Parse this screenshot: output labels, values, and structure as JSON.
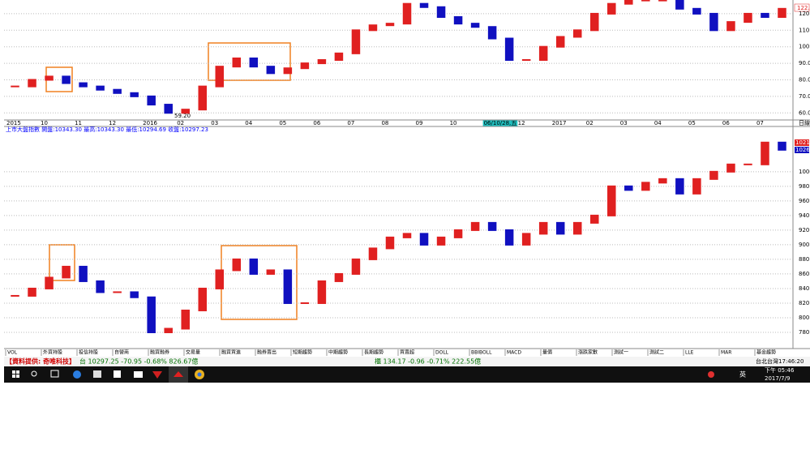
{
  "chart_data": [
    {
      "type": "candle-line",
      "up_color": "#e02020",
      "down_color": "#1010c0",
      "grid": true,
      "annotation": "59.20",
      "price_tag": "122.5",
      "period_label": "日線",
      "ylim": [
        56.2,
        128.3
      ],
      "yticks": [
        {
          "value": 120,
          "label": "120.0"
        },
        {
          "value": 110,
          "label": "110.0"
        },
        {
          "value": 100,
          "label": "100.0"
        },
        {
          "value": 90,
          "label": "90.0"
        },
        {
          "value": 80,
          "label": "80.0"
        },
        {
          "value": 70,
          "label": "70.0"
        },
        {
          "value": 60,
          "label": "60.0"
        }
      ],
      "categories": [
        "2015",
        null,
        "10",
        null,
        "11",
        null,
        "12",
        null,
        "2016",
        null,
        "02",
        null,
        "03",
        null,
        "04",
        null,
        "05",
        null,
        "06",
        null,
        "07",
        null,
        "08",
        null,
        "09",
        null,
        "10",
        null,
        "06/10/28,五",
        null,
        "12",
        null,
        "2017",
        null,
        "02",
        null,
        "03",
        null,
        "04",
        null,
        "05",
        null,
        "06",
        null,
        "07",
        null
      ],
      "values": [
        76,
        80,
        82,
        78,
        76,
        74,
        72,
        70,
        65,
        60,
        62,
        76,
        88,
        93,
        88,
        84,
        87,
        90,
        92,
        96,
        110,
        113,
        114,
        126,
        124,
        118,
        114,
        112,
        105,
        92,
        92,
        100,
        106,
        110,
        120,
        126,
        128,
        128,
        128,
        123,
        120,
        110,
        115,
        120,
        118,
        123
      ]
    },
    {
      "type": "candle-line",
      "up_color": "#e02020",
      "down_color": "#1010c0",
      "grid": true,
      "title": "上市大盤指數 開盤:10343.30 最高:10343.30 最低:10294.69 收盤:10297.23",
      "price_tags": [
        "10217",
        "10269"
      ],
      "ylim": [
        760,
        1052
      ],
      "yticks": [
        1000,
        980,
        960,
        940,
        920,
        900,
        880,
        860,
        840,
        820,
        800,
        780
      ],
      "values": [
        830,
        840,
        855,
        870,
        850,
        835,
        835,
        828,
        780,
        785,
        810,
        840,
        865,
        880,
        860,
        865,
        820,
        820,
        850,
        860,
        880,
        895,
        910,
        915,
        900,
        910,
        920,
        930,
        920,
        900,
        915,
        930,
        915,
        930,
        940,
        980,
        975,
        985,
        990,
        970,
        990,
        1000,
        1010,
        1010,
        1040,
        1030
      ]
    }
  ],
  "tabs": [
    "VOL",
    "外資持股",
    "投信持股",
    "自營商",
    "融資融券",
    "交易量",
    "融資買進",
    "融券賣出",
    "短期趨勢",
    "中期趨勢",
    "長期趨勢",
    "買賣超",
    "DOLL",
    "BBIBOLL",
    "MACD",
    "量價",
    "漲跌家數",
    "測試一",
    "測試二",
    "LLE",
    "MAR",
    "基金趨勢"
  ],
  "status": {
    "provider": "【資料提供: 奇唯科技】",
    "twse": "台 10297.25 -70.95 -0.68% 826.67億",
    "otc": "櫃 134.17 -0.96 -0.71% 222.55億",
    "clock": "台北台灣17:46:20"
  },
  "taskbar": {
    "lang": "英",
    "time": "下午 05:46",
    "date": "2017/7/9"
  }
}
